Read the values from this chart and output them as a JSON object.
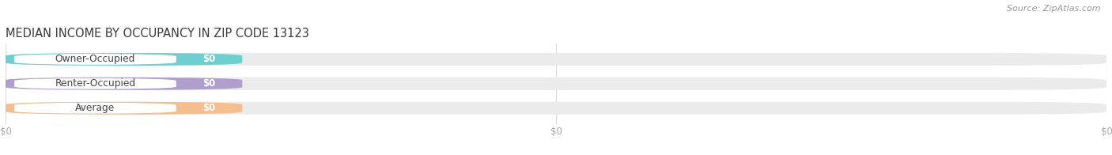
{
  "title": "MEDIAN INCOME BY OCCUPANCY IN ZIP CODE 13123",
  "source_text": "Source: ZipAtlas.com",
  "categories": [
    "Owner-Occupied",
    "Renter-Occupied",
    "Average"
  ],
  "values": [
    0,
    0,
    0
  ],
  "bar_colors": [
    "#6dcfcf",
    "#b09ecc",
    "#f5be8e"
  ],
  "bar_bg_color": "#ebebeb",
  "value_label": "$0",
  "title_color": "#3a3a3a",
  "source_color": "#999999",
  "background_color": "#ffffff",
  "figsize": [
    14.06,
    1.96
  ],
  "dpi": 100
}
